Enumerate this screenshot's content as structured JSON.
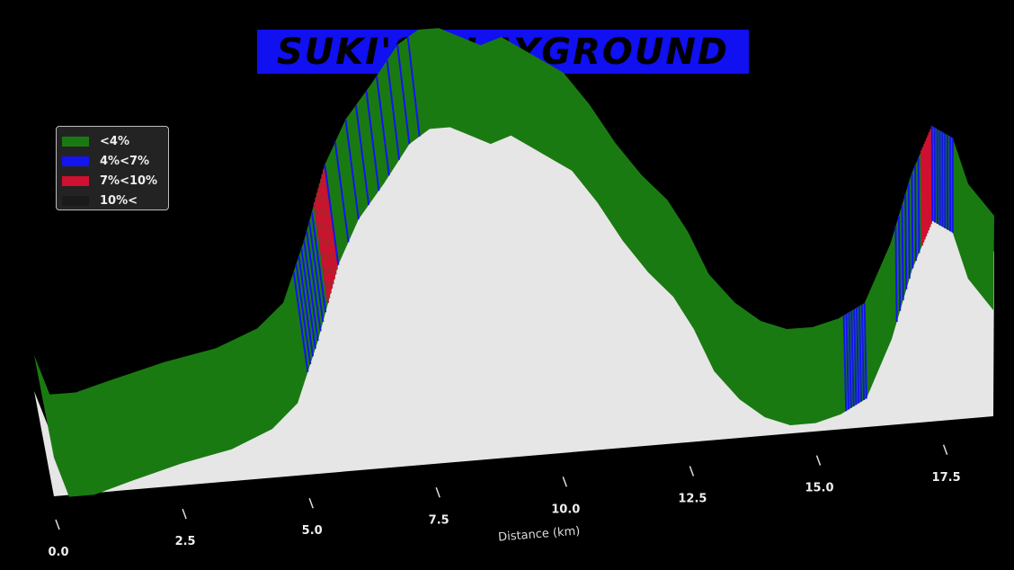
{
  "title": "SUKI'S PLAYGROUND",
  "colors": {
    "background": "#000000",
    "title_box": "#1010f0",
    "grade_lt4": "#1a7a12",
    "grade_4_7": "#1414f0",
    "grade_7_10": "#d01030",
    "grade_10plus": "#1a1a1a",
    "wall": "#e6e6e6"
  },
  "legend": {
    "placement": "upper-left",
    "items": [
      {
        "label": "<4%",
        "color": "#1a7a12"
      },
      {
        "label": "4%<7%",
        "color": "#1414f0"
      },
      {
        "label": "7%<10%",
        "color": "#d01030"
      },
      {
        "label": "10%<",
        "color": "#1a1a1a"
      }
    ]
  },
  "chart_data": {
    "type": "area",
    "projection": "3d",
    "title": "SUKI'S PLAYGROUND",
    "xlabel": "Distance (km)",
    "ylabel": "",
    "x_ticks": [
      "0.0",
      "2.5",
      "5.0",
      "7.5",
      "10.0",
      "12.5",
      "15.0",
      "17.5"
    ],
    "xlim": [
      0,
      18.5
    ],
    "grid": false,
    "series": [
      {
        "x": [
          0,
          0.3,
          0.8,
          1.5,
          2.5,
          3.5,
          4.3,
          4.8,
          5.2,
          5.6,
          6.0,
          6.5,
          7.0,
          7.4,
          7.8,
          8.2,
          8.6,
          9.0,
          9.4,
          9.8,
          10.2,
          10.7,
          11.2,
          11.7,
          12.2,
          12.6,
          13.0,
          13.5,
          14.0,
          14.5,
          15.0,
          15.5,
          16.0,
          16.5,
          16.9,
          17.3,
          17.7,
          18.0,
          18.5
        ],
        "y": [
          0.12,
          0.0,
          0.0,
          0.03,
          0.07,
          0.1,
          0.15,
          0.22,
          0.4,
          0.62,
          0.75,
          0.85,
          0.96,
          1.0,
          1.0,
          0.97,
          0.94,
          0.96,
          0.92,
          0.88,
          0.84,
          0.74,
          0.62,
          0.52,
          0.44,
          0.34,
          0.21,
          0.12,
          0.06,
          0.03,
          0.03,
          0.05,
          0.09,
          0.26,
          0.46,
          0.6,
          0.56,
          0.42,
          0.32
        ]
      }
    ],
    "grade_segments": [
      {
        "from": 5.0,
        "to": 5.4,
        "grade": "4%<7%"
      },
      {
        "from": 5.4,
        "to": 5.6,
        "grade": "7%<10%"
      },
      {
        "from": 5.6,
        "to": 7.2,
        "grade": "4%<7%"
      },
      {
        "from": 15.6,
        "to": 16.0,
        "grade": "4%<7%"
      },
      {
        "from": 16.6,
        "to": 17.1,
        "grade": "4%<7%"
      },
      {
        "from": 17.1,
        "to": 17.3,
        "grade": "7%<10%"
      },
      {
        "from": 17.3,
        "to": 17.7,
        "grade": "4%<7%"
      }
    ]
  }
}
